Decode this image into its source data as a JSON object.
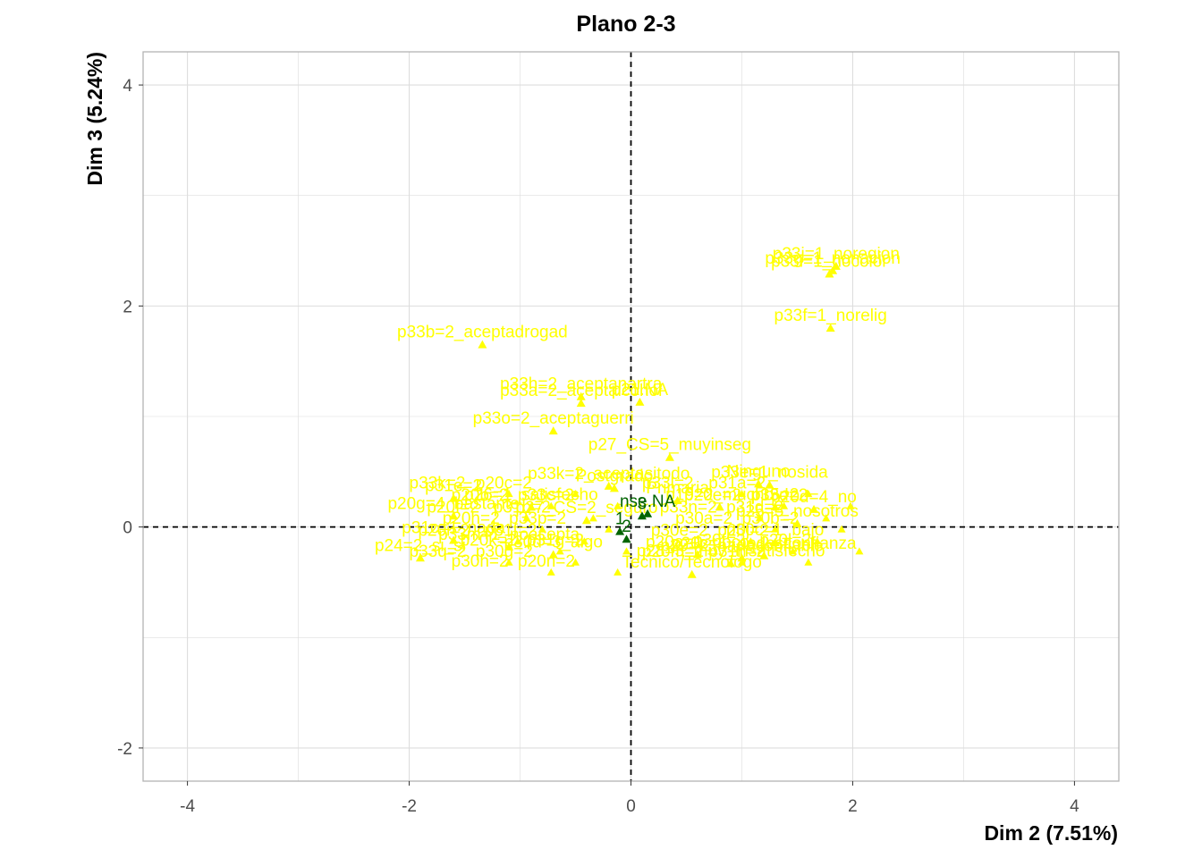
{
  "chart_data": {
    "type": "scatter",
    "title": "Plano 2-3",
    "xlabel": "Dim 2 (7.51%)",
    "ylabel": "Dim 3 (5.24%)",
    "xlim": [
      -4.4,
      4.4
    ],
    "ylim": [
      -2.3,
      4.3
    ],
    "x_ticks": [
      -4,
      -2,
      0,
      2,
      4
    ],
    "y_ticks": [
      -2,
      0,
      2,
      4
    ],
    "grid": true,
    "reference_lines": {
      "x": 0,
      "y": 0,
      "style": "dashed"
    },
    "colors": {
      "categories": "#ffff00",
      "supplementary": "#006400",
      "grid": "#dddddd",
      "panel_border": "#b3b3b3"
    },
    "series": [
      {
        "color": "#ffff00",
        "points": [
          {
            "label": "p33j=1_noregion",
            "x": 1.85,
            "y": 2.36
          },
          {
            "label": "p33g=1_nonacion",
            "x": 1.82,
            "y": 2.32
          },
          {
            "label": "p33i=1_nocolor",
            "x": 1.79,
            "y": 2.29
          },
          {
            "label": "p33f=1_norelig",
            "x": 1.8,
            "y": 1.8
          },
          {
            "label": "p33b=2_aceptadrogad",
            "x": -1.34,
            "y": 1.65
          },
          {
            "label": "p33h=2_aceptanartra",
            "x": -0.45,
            "y": 1.18
          },
          {
            "label": "p21.NA",
            "x": 0.08,
            "y": 1.13
          },
          {
            "label": "p33a=2_aceptalcohol",
            "x": -0.45,
            "y": 1.12
          },
          {
            "label": "p33o=2_aceptaguerri",
            "x": -0.7,
            "y": 0.87
          },
          {
            "label": "p27_CS=5_muyinseg",
            "x": 0.35,
            "y": 0.63
          },
          {
            "label": "Ninguno",
            "x": 1.15,
            "y": 0.39
          },
          {
            "label": "p33e=1_nosida",
            "x": 1.25,
            "y": 0.38
          },
          {
            "label": "Primaria",
            "x": 0.42,
            "y": 0.24
          },
          {
            "label": "p33k=2_aceptasitodo",
            "x": -0.2,
            "y": 0.37
          },
          {
            "label": "Postgrado",
            "x": -0.15,
            "y": 0.35
          },
          {
            "label": "p31e=2",
            "x": -1.6,
            "y": 0.26
          },
          {
            "label": "p20g=4_bastante",
            "x": -1.6,
            "y": 0.1
          },
          {
            "label": "p26=1_satisfecho",
            "x": -0.9,
            "y": 0.18
          },
          {
            "label": "p27_CS=2_seguro",
            "x": -0.4,
            "y": 0.06
          },
          {
            "label": "p19=2_mucho",
            "x": 0.8,
            "y": 0.18
          },
          {
            "label": "p15=2",
            "x": 1.3,
            "y": 0.18
          },
          {
            "label": "p20d=4_no",
            "x": 1.65,
            "y": 0.16
          },
          {
            "label": "p25=5_nosotros",
            "x": 1.5,
            "y": 0.03
          },
          {
            "label": "p30c=1_bajo",
            "x": 1.3,
            "y": -0.14
          },
          {
            "label": "p31c=1_nada",
            "x": -1.6,
            "y": -0.12
          },
          {
            "label": "p33m=1_noacepta",
            "x": -1.1,
            "y": -0.18
          },
          {
            "label": "p30d=3_algo",
            "x": -0.7,
            "y": -0.25
          },
          {
            "label": "p24=2_si_si",
            "x": -1.9,
            "y": -0.28
          },
          {
            "label": "p20a=1_poco",
            "x": 0.6,
            "y": -0.25
          },
          {
            "label": "p29=2_nadaconfiable",
            "x": 1.0,
            "y": -0.28
          },
          {
            "label": "p20c=1_nodesconfianza",
            "x": 1.2,
            "y": -0.26
          },
          {
            "label": "p28=3_muy_insatisfecho",
            "x": 0.9,
            "y": -0.33
          },
          {
            "label": "Tecnico/Tecnologo",
            "x": 0.55,
            "y": -0.43
          }
        ]
      },
      {
        "color": "#006400",
        "points": [
          {
            "label": "nse.NA",
            "x": 0.15,
            "y": 0.12
          },
          {
            "label": "3",
            "x": 0.1,
            "y": 0.1
          },
          {
            "label": "1",
            "x": -0.1,
            "y": -0.04
          },
          {
            "label": "2",
            "x": -0.04,
            "y": -0.11
          }
        ]
      }
    ],
    "cluster_labels": [
      "p33k=2",
      "p20c=2",
      "p33l=2",
      "p31a=2",
      "p20b=2",
      "p33c=2",
      "p20e=2",
      "p33d=2",
      "p20f=2",
      "p31b=2",
      "p33n=2",
      "p31d=2",
      "p20h=2",
      "p33p=2",
      "p30a=2",
      "p30b=2",
      "p20i=2",
      "p31f=2",
      "p30e=2",
      "p20j=2",
      "p20k=2",
      "p31g=2",
      "p30f=2",
      "p20l=2",
      "p33q=2",
      "p30g=2",
      "p20m=2",
      "p31h=2",
      "p30h=2",
      "p20n=2"
    ]
  }
}
